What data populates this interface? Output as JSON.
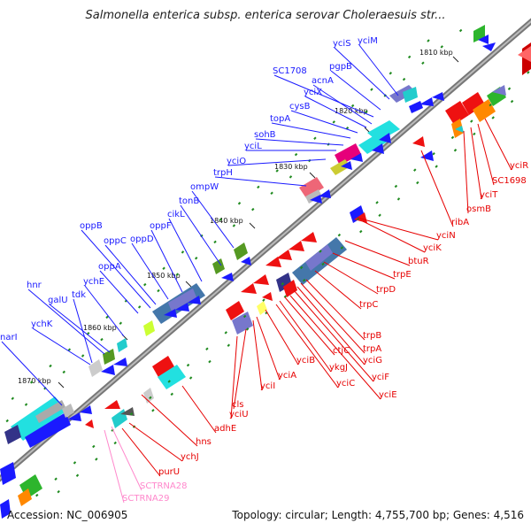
{
  "title": "Salmonella enterica subsp. enterica serovar Choleraesuis str...",
  "footer": {
    "accession": "Accession: NC_006905",
    "summary": "Topology: circular; Length: 4,755,700 bp; Genes: 4,516"
  },
  "colors": {
    "backbone": "#666666",
    "forward_label": "#1a1aff",
    "reverse_label": "#e60000",
    "rna_label": "#ff88cc",
    "dots": "#1f8a1f"
  },
  "ticks": [
    "1810 kbp",
    "1820 kbp",
    "1830 kbp",
    "1840 kbp",
    "1850 kbp",
    "1860 kbp",
    "1870 kbp"
  ],
  "forward_genes": [
    "yciS",
    "yciM",
    "pgpB",
    "SC1708",
    "acnA",
    "yciX",
    "cysB",
    "topA",
    "sohB",
    "yciL",
    "yciO",
    "trpH",
    "ompW",
    "tonB",
    "cikL",
    "oppF",
    "oppD",
    "oppB",
    "oppC",
    "oppA",
    "ychE",
    "hnr",
    "galU",
    "tdk",
    "ychK",
    "narI"
  ],
  "reverse_genes": [
    "yciR",
    "SC1698",
    "yciT",
    "osmB",
    "ribA",
    "yciN",
    "yciK",
    "btuR",
    "trpE",
    "trpD",
    "trpC",
    "trpB",
    "trpA",
    "yciG",
    "yciF",
    "yciE",
    "ctjC",
    "ykgJ",
    "yciC",
    "yciB",
    "yciA",
    "yciI",
    "cls",
    "yciU",
    "adhE",
    "hns",
    "ychJ",
    "purU"
  ],
  "rna_genes": [
    "SCTRNA28",
    "SCTRNA29"
  ]
}
